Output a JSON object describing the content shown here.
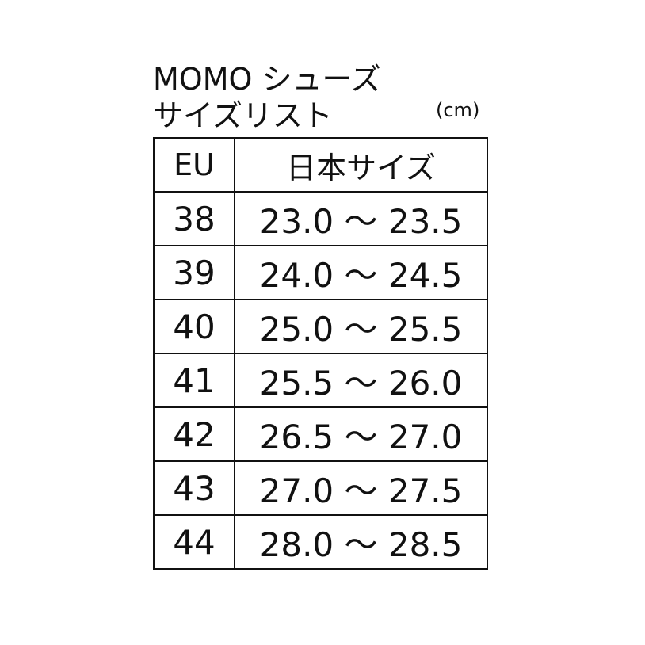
{
  "title": {
    "line1": "MOMO シューズ",
    "line2": "サイズリスト",
    "unit": "(cm)"
  },
  "table": {
    "headers": [
      "EU",
      "日本サイズ"
    ],
    "rows": [
      [
        "38",
        "23.0 ～ 23.5"
      ],
      [
        "39",
        "24.0 ～ 24.5"
      ],
      [
        "40",
        "25.0 ～ 25.5"
      ],
      [
        "41",
        "25.5 ～ 26.0"
      ],
      [
        "42",
        "26.5 ～ 27.0"
      ],
      [
        "43",
        "27.0 ～ 27.5"
      ],
      [
        "44",
        "28.0 ～ 28.5"
      ]
    ]
  }
}
